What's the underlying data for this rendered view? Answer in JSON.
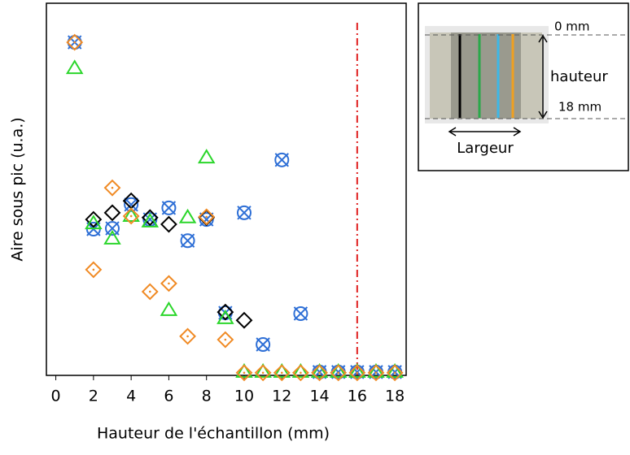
{
  "chart_data": {
    "type": "scatter",
    "xlabel": "Hauteur de l'échantillon (mm)",
    "ylabel": "Aire sous pic (u.a.)",
    "xlim": [
      -0.5,
      18.6
    ],
    "ylim": [
      0,
      100
    ],
    "xticks": [
      0,
      2,
      4,
      6,
      8,
      10,
      12,
      14,
      16,
      18
    ],
    "vline": {
      "x": 16,
      "color": "#e02020"
    },
    "series": [
      {
        "marker": "circle-x",
        "color": "#2e6fd6",
        "x": [
          1,
          2,
          3,
          4,
          5,
          6,
          7,
          8,
          9,
          10,
          11,
          12,
          13,
          14,
          15,
          16,
          17,
          18
        ],
        "values": [
          89.5,
          39.3,
          39.5,
          45.9,
          41.9,
          45.0,
          36.2,
          41.9,
          16.8,
          43.7,
          8.3,
          57.9,
          16.6,
          0.9,
          0.9,
          0.9,
          0.9,
          0.9
        ]
      },
      {
        "marker": "diamond",
        "color": "#000000",
        "x": [
          2,
          3,
          4,
          5,
          6,
          8,
          9,
          10
        ],
        "values": [
          41.9,
          43.7,
          46.9,
          42.4,
          40.6,
          42.4,
          17.0,
          14.8
        ]
      },
      {
        "marker": "triangle",
        "color": "#2bd62b",
        "x": [
          1,
          2,
          3,
          4,
          5,
          6,
          7,
          8,
          9,
          10,
          11,
          12,
          13,
          14,
          15,
          16,
          17,
          18
        ],
        "values": [
          82.5,
          40.8,
          36.7,
          42.8,
          41.3,
          17.5,
          42.4,
          58.5,
          15.3,
          0.9,
          0.9,
          0.9,
          0.9,
          0.9,
          0.9,
          0.9,
          0.9,
          0.9
        ]
      },
      {
        "marker": "diamond-dot",
        "color": "#f08a24",
        "x": [
          1,
          2,
          3,
          4,
          5,
          6,
          7,
          8,
          9,
          10,
          11,
          12,
          13,
          14,
          15,
          16,
          17,
          18
        ],
        "values": [
          89.5,
          28.4,
          50.4,
          42.8,
          22.5,
          24.7,
          10.5,
          42.6,
          9.6,
          0.7,
          0.7,
          0.7,
          0.7,
          0.7,
          0.7,
          0.7,
          0.7,
          0.7
        ]
      }
    ]
  },
  "inset": {
    "top_label": "0 mm",
    "height_label": "hauteur",
    "bottom_label": "18 mm",
    "width_label": "Largeur"
  }
}
